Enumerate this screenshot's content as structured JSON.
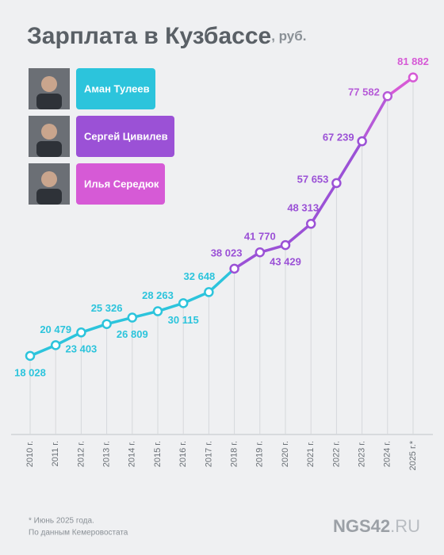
{
  "chart_data": {
    "type": "line",
    "title": "Зарплата в Кузбассе",
    "unit": ", руб.",
    "categories": [
      "2010 г.",
      "2011 г.",
      "2012 г.",
      "2013 г.",
      "2014 г.",
      "2015 г.",
      "2016 г.",
      "2017 г.",
      "2018 г.",
      "2019 г.",
      "2020 г.",
      "2021 г.",
      "2022 г.",
      "2023 г.",
      "2024 г.",
      "2025 г.*"
    ],
    "values": [
      18028,
      20479,
      23403,
      25326,
      26809,
      28263,
      30115,
      32648,
      38023,
      41770,
      43429,
      48313,
      57653,
      67239,
      77582,
      81882
    ],
    "value_labels": [
      "18 028",
      "20 479",
      "23 403",
      "25 326",
      "26 809",
      "28 263",
      "30 115",
      "32 648",
      "38 023",
      "41 770",
      "43 429",
      "48 313",
      "57 653",
      "67 239",
      "77 582",
      "81 882"
    ],
    "point_colors": [
      "#2cc4dc",
      "#2cc4dc",
      "#2cc4dc",
      "#2cc4dc",
      "#2cc4dc",
      "#2cc4dc",
      "#2cc4dc",
      "#2cc4dc",
      "#9b51d6",
      "#9b51d6",
      "#9b51d6",
      "#9b51d6",
      "#9b51d6",
      "#9b51d6",
      "#b65ad8",
      "#d65ad6"
    ],
    "leaders": [
      {
        "name": "Аман Тулеев",
        "color": "#2cc4dc"
      },
      {
        "name": "Сергей Цивилев",
        "color": "#9b51d6"
      },
      {
        "name": "Илья Середюк",
        "color": "#d65ad6"
      }
    ],
    "ylim": [
      0,
      90000
    ],
    "notes": [
      "* Июнь 2025 года.",
      "По данным Кемеровостата"
    ],
    "logo": {
      "main": "NGS42",
      "suffix": ".RU"
    }
  }
}
